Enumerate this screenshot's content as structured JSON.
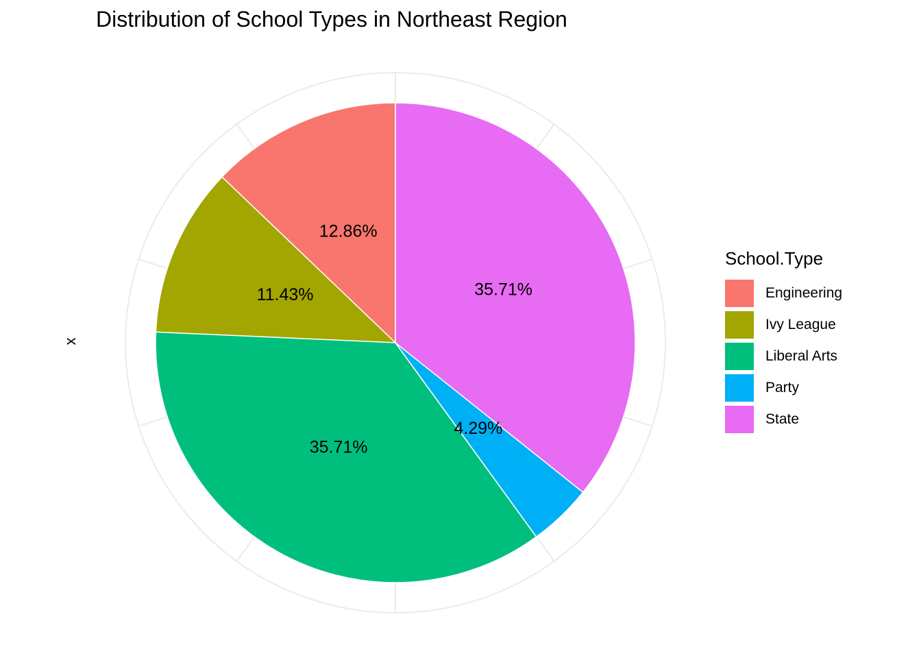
{
  "chart_data": {
    "type": "pie",
    "title": "Distribution of School Types in Northeast Region",
    "ylabel": "x",
    "legend_title": "School.Type",
    "legend_position": "right",
    "grid": true,
    "slices": [
      {
        "name": "Engineering",
        "value": 12.86,
        "label": "12.86%",
        "color": "#F8766D"
      },
      {
        "name": "Ivy League",
        "value": 11.43,
        "label": "11.43%",
        "color": "#A3A500"
      },
      {
        "name": "Liberal Arts",
        "value": 35.71,
        "label": "35.71%",
        "color": "#00BF7D"
      },
      {
        "name": "Party",
        "value": 4.29,
        "label": "4.29%",
        "color": "#00B0F6"
      },
      {
        "name": "State",
        "value": 35.71,
        "label": "35.71%",
        "color": "#E76BF3"
      }
    ]
  }
}
